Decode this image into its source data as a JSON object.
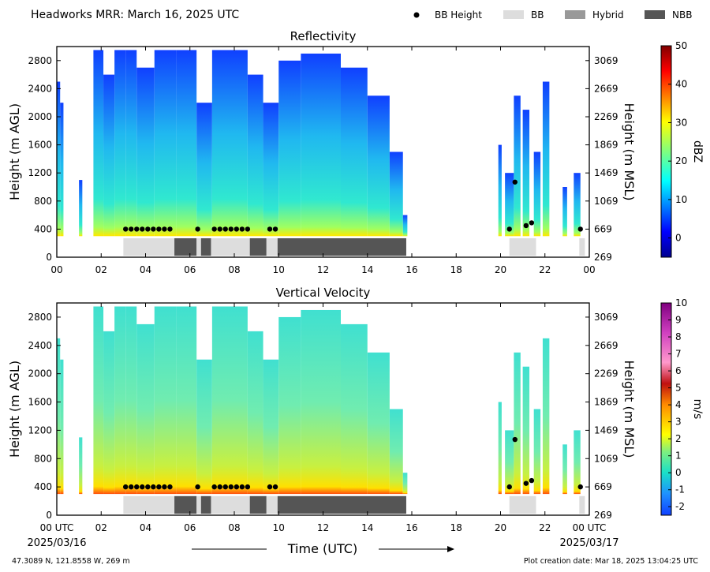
{
  "header": {
    "title": "Headworks MRR:  March 16, 2025 UTC",
    "legend": [
      {
        "label": "BB Height",
        "kind": "dot",
        "color": "#000000"
      },
      {
        "label": "BB",
        "kind": "swatch",
        "color": "#dddddd"
      },
      {
        "label": "Hybrid",
        "kind": "swatch",
        "color": "#999999"
      },
      {
        "label": "NBB",
        "kind": "swatch",
        "color": "#555555"
      }
    ]
  },
  "footer": {
    "location": "47.3089 N, 121.8558 W, 269 m",
    "creation": "Plot creation date: Mar 18, 2025 13:04:25 UTC",
    "xlabel": "Time (UTC)",
    "date_start": "2025/03/16",
    "date_end": "2025/03/17"
  },
  "colors": {
    "BB": "#dddddd",
    "Hybrid": "#999999",
    "NBB": "#555555",
    "dot": "#000000"
  },
  "chart_data": [
    {
      "type": "heatmap",
      "title": "Reflectivity",
      "ylabel": "Height (m AGL)",
      "ylabel_right": "Height (m MSL)",
      "xlim": [
        0,
        24
      ],
      "ylim": [
        0,
        3000
      ],
      "xticks": [
        "00",
        "02",
        "04",
        "06",
        "08",
        "10",
        "12",
        "14",
        "16",
        "18",
        "20",
        "22",
        "00"
      ],
      "yticks": [
        0,
        400,
        800,
        1200,
        1600,
        2000,
        2400,
        2800
      ],
      "yticks_right": [
        269,
        669,
        1069,
        1469,
        1869,
        2269,
        2669,
        3069
      ],
      "colorbar": {
        "label": "dBZ",
        "min": -5,
        "max": 50,
        "ticks": [
          0,
          10,
          20,
          30,
          40,
          50
        ],
        "scheme": "jet"
      },
      "bb_height": [
        {
          "t": 3.1,
          "h": 400
        },
        {
          "t": 3.35,
          "h": 400
        },
        {
          "t": 3.6,
          "h": 400
        },
        {
          "t": 3.85,
          "h": 400
        },
        {
          "t": 4.1,
          "h": 400
        },
        {
          "t": 4.35,
          "h": 400
        },
        {
          "t": 4.6,
          "h": 400
        },
        {
          "t": 4.85,
          "h": 400
        },
        {
          "t": 5.1,
          "h": 400
        },
        {
          "t": 6.35,
          "h": 400
        },
        {
          "t": 7.1,
          "h": 400
        },
        {
          "t": 7.35,
          "h": 400
        },
        {
          "t": 7.6,
          "h": 400
        },
        {
          "t": 7.85,
          "h": 400
        },
        {
          "t": 8.1,
          "h": 400
        },
        {
          "t": 8.35,
          "h": 400
        },
        {
          "t": 8.6,
          "h": 400
        },
        {
          "t": 9.6,
          "h": 400
        },
        {
          "t": 9.85,
          "h": 400
        },
        {
          "t": 20.4,
          "h": 400
        },
        {
          "t": 20.65,
          "h": 1070
        },
        {
          "t": 21.15,
          "h": 450
        },
        {
          "t": 21.4,
          "h": 490
        },
        {
          "t": 23.6,
          "h": 400
        }
      ],
      "bb_type": [
        {
          "start": 3.0,
          "end": 5.3,
          "type": "BB"
        },
        {
          "start": 5.3,
          "end": 6.3,
          "type": "NBB"
        },
        {
          "start": 6.3,
          "end": 6.5,
          "type": "BB"
        },
        {
          "start": 6.5,
          "end": 6.95,
          "type": "NBB"
        },
        {
          "start": 6.95,
          "end": 8.7,
          "type": "BB"
        },
        {
          "start": 8.7,
          "end": 9.45,
          "type": "NBB"
        },
        {
          "start": 9.45,
          "end": 9.95,
          "type": "BB"
        },
        {
          "start": 9.95,
          "end": 15.75,
          "type": "NBB"
        },
        {
          "start": 20.4,
          "end": 21.6,
          "type": "BB"
        },
        {
          "start": 23.55,
          "end": 23.8,
          "type": "BB"
        }
      ]
    },
    {
      "type": "heatmap",
      "title": "Vertical Velocity",
      "ylabel": "Height (m AGL)",
      "ylabel_right": "Height (m MSL)",
      "xlim": [
        0,
        24
      ],
      "ylim": [
        0,
        3000
      ],
      "xticks": [
        "00 UTC",
        "02",
        "04",
        "06",
        "08",
        "10",
        "12",
        "14",
        "16",
        "18",
        "20",
        "22",
        "00 UTC"
      ],
      "yticks": [
        0,
        400,
        800,
        1200,
        1600,
        2000,
        2400,
        2800
      ],
      "yticks_right": [
        269,
        669,
        1069,
        1469,
        1869,
        2269,
        2669,
        3069
      ],
      "colorbar": {
        "label": "m/s",
        "min": -2.5,
        "max": 10,
        "ticks": [
          -2,
          -1,
          0,
          1,
          2,
          3,
          4,
          5,
          6,
          7,
          8,
          9,
          10
        ],
        "scheme": "velocity"
      },
      "bb_height": [
        {
          "t": 3.1,
          "h": 400
        },
        {
          "t": 3.35,
          "h": 400
        },
        {
          "t": 3.6,
          "h": 400
        },
        {
          "t": 3.85,
          "h": 400
        },
        {
          "t": 4.1,
          "h": 400
        },
        {
          "t": 4.35,
          "h": 400
        },
        {
          "t": 4.6,
          "h": 400
        },
        {
          "t": 4.85,
          "h": 400
        },
        {
          "t": 5.1,
          "h": 400
        },
        {
          "t": 6.35,
          "h": 400
        },
        {
          "t": 7.1,
          "h": 400
        },
        {
          "t": 7.35,
          "h": 400
        },
        {
          "t": 7.6,
          "h": 400
        },
        {
          "t": 7.85,
          "h": 400
        },
        {
          "t": 8.1,
          "h": 400
        },
        {
          "t": 8.35,
          "h": 400
        },
        {
          "t": 8.6,
          "h": 400
        },
        {
          "t": 9.6,
          "h": 400
        },
        {
          "t": 9.85,
          "h": 400
        },
        {
          "t": 20.4,
          "h": 400
        },
        {
          "t": 20.65,
          "h": 1070
        },
        {
          "t": 21.15,
          "h": 450
        },
        {
          "t": 21.4,
          "h": 490
        },
        {
          "t": 23.6,
          "h": 400
        }
      ],
      "bb_type": [
        {
          "start": 3.0,
          "end": 5.3,
          "type": "BB"
        },
        {
          "start": 5.3,
          "end": 6.3,
          "type": "NBB"
        },
        {
          "start": 6.3,
          "end": 6.5,
          "type": "BB"
        },
        {
          "start": 6.5,
          "end": 6.95,
          "type": "NBB"
        },
        {
          "start": 6.95,
          "end": 8.7,
          "type": "BB"
        },
        {
          "start": 8.7,
          "end": 9.45,
          "type": "NBB"
        },
        {
          "start": 9.45,
          "end": 9.95,
          "type": "BB"
        },
        {
          "start": 9.95,
          "end": 15.75,
          "type": "NBB"
        },
        {
          "start": 20.4,
          "end": 21.6,
          "type": "BB"
        },
        {
          "start": 23.55,
          "end": 23.8,
          "type": "BB"
        }
      ]
    }
  ]
}
